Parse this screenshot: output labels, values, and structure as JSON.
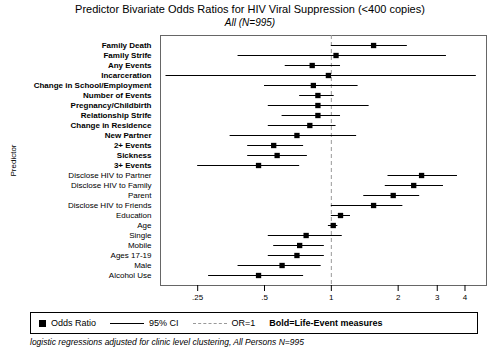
{
  "chart_data": {
    "type": "forest",
    "title": "Predictor Bivariate Odds Ratios for HIV Viral Suppression (<400 copies)",
    "subtitle": "All (N=995)",
    "caption": "logistic regressions adjusted for clinic level clustering, All Persons N=995",
    "ylabel": "Predictor",
    "log": "x",
    "grid": false,
    "legend": "bottom",
    "xlim": [
      0.17,
      5.0
    ],
    "xticks": [
      {
        "value": 0.25,
        "label": ".25"
      },
      {
        "value": 0.5,
        "label": ".5"
      },
      1,
      2,
      3,
      4
    ],
    "categories": [
      "Family Death",
      "Family Strife",
      "Any Events",
      "Incarceration",
      "Change in School/Employment",
      "Number of Events",
      "Pregnancy/Childbirth",
      "Relationship Strife",
      "Change in Residence",
      "New Partner",
      "2+ Events",
      "Sickness",
      "3+ Events",
      "Disclose HIV to Partner",
      "Disclose HIV to Family",
      "Parent",
      "Disclose HIV to Friends",
      "Education",
      "Age",
      "Single",
      "Mobile",
      "Ages 17-19",
      "Male",
      "Alcohol Use"
    ],
    "values": [
      1.55,
      1.05,
      0.82,
      0.97,
      0.83,
      0.87,
      0.87,
      0.87,
      0.8,
      0.7,
      0.55,
      0.57,
      0.47,
      2.55,
      2.35,
      1.9,
      1.55,
      1.1,
      1.02,
      0.77,
      0.72,
      0.7,
      0.6,
      0.47
    ],
    "ci_lo": [
      1.0,
      0.38,
      0.62,
      0.18,
      0.5,
      0.72,
      0.52,
      0.6,
      0.52,
      0.35,
      0.42,
      0.42,
      0.25,
      1.8,
      1.75,
      1.4,
      1.0,
      1.0,
      0.97,
      0.52,
      0.55,
      0.52,
      0.38,
      0.28
    ],
    "ci_hi": [
      2.2,
      3.3,
      1.1,
      4.5,
      1.32,
      1.03,
      1.48,
      1.1,
      1.05,
      1.3,
      0.75,
      0.78,
      0.72,
      3.7,
      3.2,
      2.5,
      2.1,
      1.22,
      1.07,
      1.12,
      0.93,
      0.93,
      0.9,
      0.75
    ],
    "bold": [
      true,
      true,
      true,
      true,
      true,
      true,
      true,
      true,
      true,
      true,
      true,
      true,
      true,
      false,
      false,
      false,
      false,
      false,
      false,
      false,
      false,
      false,
      false,
      false
    ],
    "color": "black",
    "marker": "square",
    "reference_line": {
      "value": 1.0,
      "color": "#999999",
      "line_style": "dashed",
      "label": "OR=1"
    },
    "legend_entries": [
      {
        "name": "Odds Ratio",
        "marker": "square",
        "color": "black"
      },
      {
        "name": "95% CI",
        "line_style": "solid",
        "color": "black"
      }
    ],
    "annotation": "Bold=Life-Event measures"
  }
}
